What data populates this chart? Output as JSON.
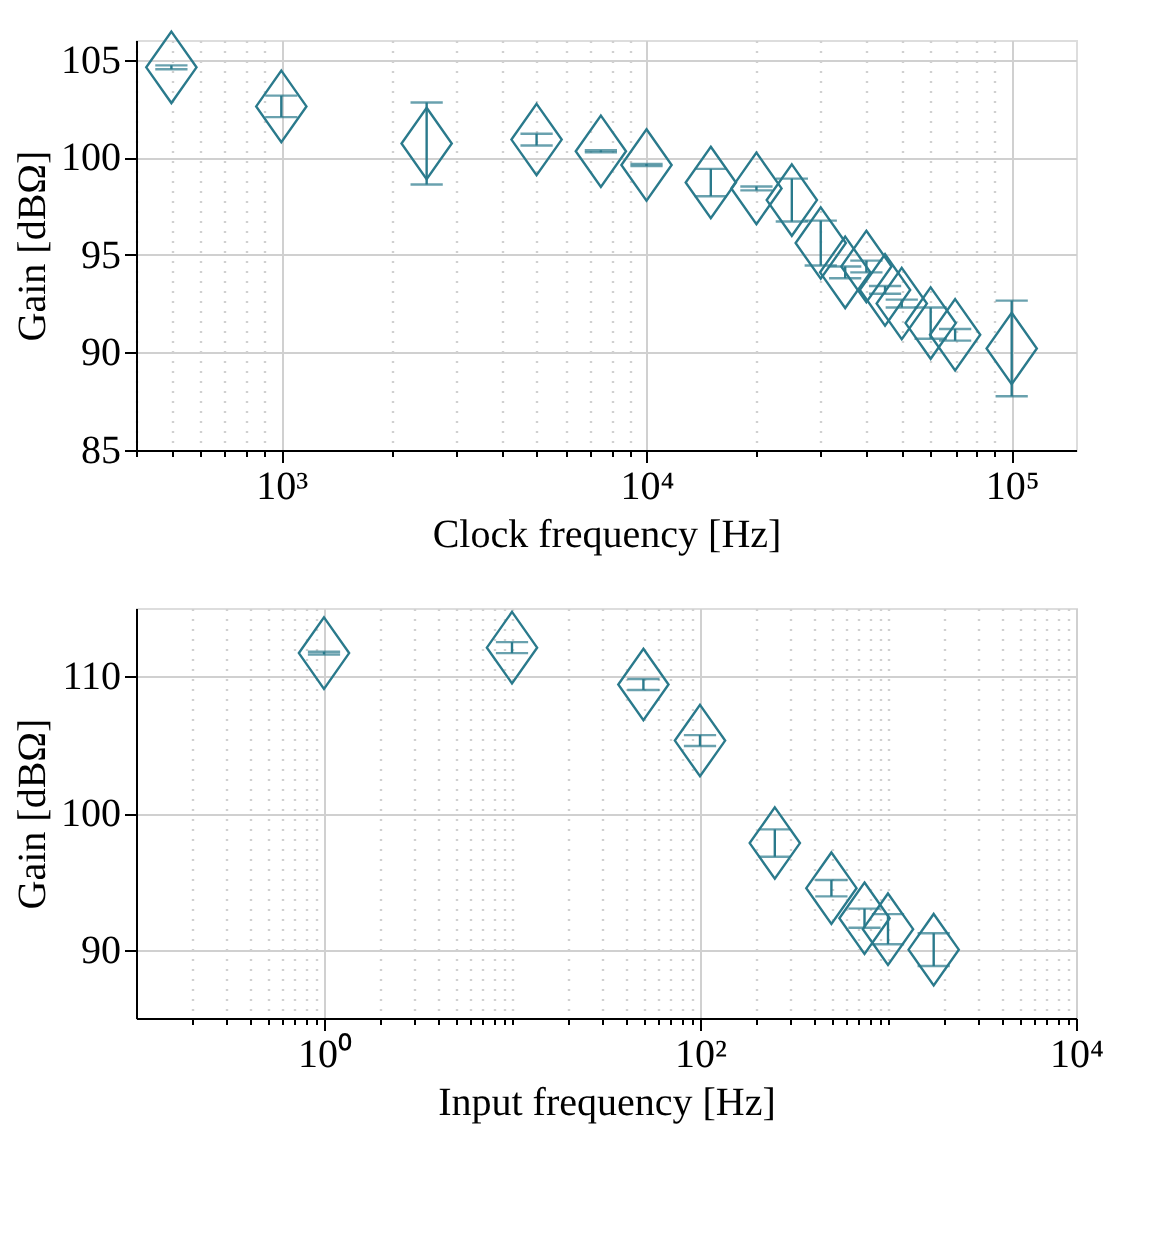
{
  "chart_data": [
    {
      "type": "scatter",
      "xlabel": "Clock frequency [Hz]",
      "ylabel": "Gain [dBΩ]",
      "log": "x",
      "grid": true,
      "marker": "diamond",
      "xlim": [
        400,
        150000
      ],
      "ylim": [
        85,
        106
      ],
      "xticks": [
        {
          "value": 400,
          "label": null
        },
        {
          "value": 500,
          "label": null
        },
        {
          "value": 600,
          "label": null
        },
        {
          "value": 700,
          "label": null
        },
        {
          "value": 800,
          "label": null
        },
        {
          "value": 900,
          "label": null
        },
        {
          "value": 1000,
          "label": "10³"
        },
        {
          "value": 2000,
          "label": null
        },
        {
          "value": 3000,
          "label": null
        },
        {
          "value": 4000,
          "label": null
        },
        {
          "value": 5000,
          "label": null
        },
        {
          "value": 6000,
          "label": null
        },
        {
          "value": 7000,
          "label": null
        },
        {
          "value": 8000,
          "label": null
        },
        {
          "value": 9000,
          "label": null
        },
        {
          "value": 10000,
          "label": "10⁴"
        },
        {
          "value": 20000,
          "label": null
        },
        {
          "value": 30000,
          "label": null
        },
        {
          "value": 40000,
          "label": null
        },
        {
          "value": 50000,
          "label": null
        },
        {
          "value": 60000,
          "label": null
        },
        {
          "value": 70000,
          "label": null
        },
        {
          "value": 80000,
          "label": null
        },
        {
          "value": 90000,
          "label": null
        },
        {
          "value": 100000,
          "label": "10⁵"
        }
      ],
      "yticks": [
        85,
        90,
        95,
        100,
        105
      ],
      "series": [
        {
          "color": "#2a7a8c",
          "x": [
            500,
            1000,
            2500,
            5000,
            7500,
            10000,
            15000,
            20000,
            25000,
            30000,
            35000,
            40000,
            45000,
            50000,
            60000,
            70000,
            100000
          ],
          "values": [
            104.6,
            102.6,
            100.7,
            100.9,
            100.3,
            99.6,
            98.7,
            98.4,
            97.8,
            95.6,
            94.1,
            94.4,
            93.2,
            92.5,
            91.5,
            90.9,
            90.2
          ],
          "errors": [
            0.1,
            0.55,
            2.1,
            0.3,
            0.05,
            0.05,
            0.7,
            0.1,
            1.1,
            1.15,
            0.3,
            0.3,
            0.2,
            0.2,
            0.8,
            0.3,
            2.45
          ]
        }
      ]
    },
    {
      "type": "scatter",
      "xlabel": "Input frequency [Hz]",
      "ylabel": "Gain [dBΩ]",
      "log": "x",
      "grid": true,
      "marker": "diamond",
      "xlim": [
        0.1,
        10000
      ],
      "ylim": [
        85,
        115
      ],
      "xticks": [
        {
          "value": 0.2,
          "label": null
        },
        {
          "value": 0.3,
          "label": null
        },
        {
          "value": 0.4,
          "label": null
        },
        {
          "value": 0.5,
          "label": null
        },
        {
          "value": 0.6,
          "label": null
        },
        {
          "value": 0.7,
          "label": null
        },
        {
          "value": 0.8,
          "label": null
        },
        {
          "value": 0.9,
          "label": null
        },
        {
          "value": 1,
          "label": "10⁰"
        },
        {
          "value": 2,
          "label": null
        },
        {
          "value": 3,
          "label": null
        },
        {
          "value": 4,
          "label": null
        },
        {
          "value": 5,
          "label": null
        },
        {
          "value": 6,
          "label": null
        },
        {
          "value": 7,
          "label": null
        },
        {
          "value": 8,
          "label": null
        },
        {
          "value": 9,
          "label": null
        },
        {
          "value": 10,
          "label": null
        },
        {
          "value": 20,
          "label": null
        },
        {
          "value": 30,
          "label": null
        },
        {
          "value": 40,
          "label": null
        },
        {
          "value": 50,
          "label": null
        },
        {
          "value": 60,
          "label": null
        },
        {
          "value": 70,
          "label": null
        },
        {
          "value": 80,
          "label": null
        },
        {
          "value": 90,
          "label": null
        },
        {
          "value": 100,
          "label": "10²"
        },
        {
          "value": 200,
          "label": null
        },
        {
          "value": 300,
          "label": null
        },
        {
          "value": 400,
          "label": null
        },
        {
          "value": 500,
          "label": null
        },
        {
          "value": 600,
          "label": null
        },
        {
          "value": 700,
          "label": null
        },
        {
          "value": 800,
          "label": null
        },
        {
          "value": 900,
          "label": null
        },
        {
          "value": 1000,
          "label": null
        },
        {
          "value": 2000,
          "label": null
        },
        {
          "value": 3000,
          "label": null
        },
        {
          "value": 4000,
          "label": null
        },
        {
          "value": 5000,
          "label": null
        },
        {
          "value": 6000,
          "label": null
        },
        {
          "value": 7000,
          "label": null
        },
        {
          "value": 8000,
          "label": null
        },
        {
          "value": 9000,
          "label": null
        },
        {
          "value": 10000,
          "label": "10⁴"
        }
      ],
      "yticks": [
        90,
        100,
        110
      ],
      "series": [
        {
          "color": "#2a7a8c",
          "x": [
            1,
            10,
            50,
            100,
            250,
            500,
            750,
            1000,
            1750
          ],
          "values": [
            111.7,
            112.1,
            109.4,
            105.3,
            97.8,
            94.5,
            92.3,
            91.5,
            90.0
          ],
          "errors": [
            0.1,
            0.4,
            0.4,
            0.4,
            1.0,
            0.6,
            0.7,
            1.1,
            1.2
          ]
        }
      ]
    }
  ]
}
